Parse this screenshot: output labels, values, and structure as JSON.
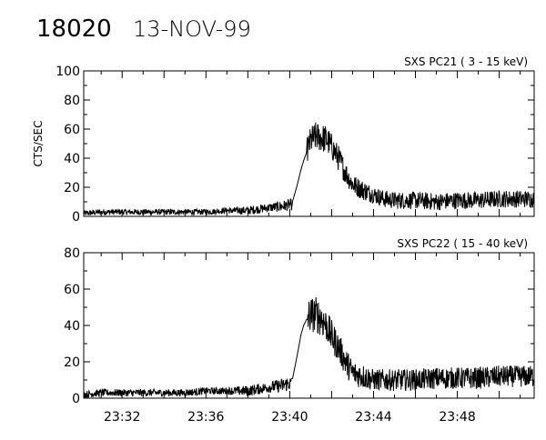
{
  "header": {
    "id_text": "18020",
    "date_text": "13-NOV-99"
  },
  "colors": {
    "background": "#ffffff",
    "ink": "#000000"
  },
  "chart_data": [
    {
      "type": "line",
      "title": "SXS PC21  (  3 - 15 keV)",
      "ylabel": "CTS/SEC",
      "xlabel": "",
      "ylim": [
        0,
        100
      ],
      "yticks": [
        "0",
        "20",
        "40",
        "60",
        "80",
        "100"
      ],
      "ytick_values": [
        0,
        20,
        40,
        60,
        80,
        100
      ],
      "xlim": [
        "23:30:10",
        "23:51:40"
      ],
      "grid": false,
      "series": [
        {
          "x": [
            "23:30:10",
            "23:31:00",
            "23:32:00",
            "23:33:00",
            "23:34:00",
            "23:35:00",
            "23:36:00",
            "23:37:00",
            "23:38:00",
            "23:39:00",
            "23:39:40",
            "23:39:58",
            "23:40:05",
            "23:40:20",
            "23:40:35",
            "23:40:50",
            "23:41:00",
            "23:41:15",
            "23:41:30",
            "23:41:45",
            "23:42:00",
            "23:42:20",
            "23:42:40",
            "23:43:00",
            "23:43:30",
            "23:44:00",
            "23:44:30",
            "23:45:00",
            "23:46:00",
            "23:47:00",
            "23:48:00",
            "23:49:00",
            "23:50:00",
            "23:51:00",
            "23:51:40"
          ],
          "values": [
            2,
            3,
            3,
            3,
            3,
            3,
            3,
            4,
            4,
            6,
            7,
            8,
            8,
            20,
            35,
            45,
            52,
            55,
            54,
            53,
            48,
            40,
            30,
            22,
            18,
            15,
            12,
            11,
            11,
            10,
            11,
            11,
            12,
            12,
            12
          ],
          "noise": [
            2,
            2,
            2,
            2,
            2,
            2,
            2,
            2,
            3,
            3,
            4,
            4,
            4,
            6,
            8,
            10,
            10,
            10,
            10,
            10,
            9,
            9,
            8,
            7,
            7,
            6,
            6,
            6,
            6,
            6,
            6,
            6,
            6,
            6,
            6
          ]
        }
      ]
    },
    {
      "type": "line",
      "title": "SXS PC22  ( 15 - 40 keV)",
      "ylabel": "",
      "xlabel": "",
      "ylim": [
        0,
        80
      ],
      "yticks": [
        "0",
        "20",
        "40",
        "60",
        "80"
      ],
      "ytick_values": [
        0,
        20,
        40,
        60,
        80
      ],
      "xlim": [
        "23:30:10",
        "23:51:40"
      ],
      "xticks": [
        "23:32",
        "23:36",
        "23:40",
        "23:44",
        "23:48"
      ],
      "grid": false,
      "series": [
        {
          "x": [
            "23:30:10",
            "23:31:00",
            "23:32:00",
            "23:33:00",
            "23:34:00",
            "23:35:00",
            "23:36:00",
            "23:37:00",
            "23:38:00",
            "23:39:00",
            "23:39:40",
            "23:39:58",
            "23:40:05",
            "23:40:20",
            "23:40:35",
            "23:40:50",
            "23:41:00",
            "23:41:15",
            "23:41:30",
            "23:41:45",
            "23:42:00",
            "23:42:20",
            "23:42:40",
            "23:43:00",
            "23:43:30",
            "23:44:00",
            "23:44:30",
            "23:45:00",
            "23:46:00",
            "23:47:00",
            "23:48:00",
            "23:49:00",
            "23:50:00",
            "23:51:00",
            "23:51:40"
          ],
          "values": [
            2,
            3,
            3,
            3,
            3,
            3,
            4,
            4,
            4,
            6,
            7,
            8,
            8,
            22,
            38,
            44,
            46,
            46,
            44,
            40,
            34,
            28,
            20,
            14,
            12,
            10,
            10,
            10,
            10,
            11,
            11,
            11,
            12,
            12,
            12
          ],
          "noise": [
            2,
            2,
            2,
            2,
            2,
            2,
            2,
            2,
            3,
            3,
            4,
            4,
            4,
            6,
            8,
            10,
            10,
            10,
            10,
            9,
            9,
            8,
            8,
            7,
            7,
            6,
            6,
            6,
            6,
            6,
            6,
            6,
            6,
            6,
            6
          ]
        }
      ]
    }
  ]
}
